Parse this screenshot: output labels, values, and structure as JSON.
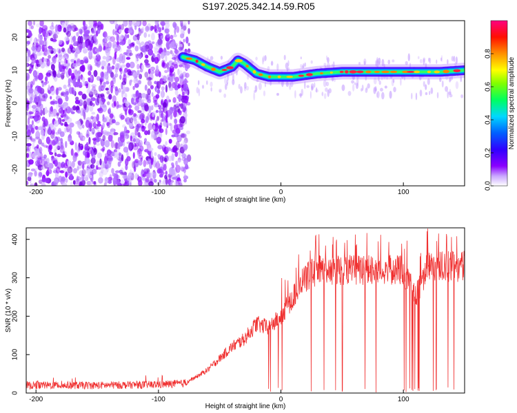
{
  "title": "S197.2025.342.14.59.R05",
  "chart_data": [
    {
      "type": "heatmap",
      "xlabel": "Height of straight line (km)",
      "ylabel": "Frequency (Hz)",
      "xlim": [
        -208,
        150
      ],
      "ylim": [
        -25,
        25
      ],
      "x_ticks": [
        "-200",
        "-100",
        "0",
        "100"
      ],
      "y_ticks": [
        "-20",
        "-10",
        "0",
        "10",
        "20"
      ],
      "colorbar": {
        "label": "Normalized spectral amplitude",
        "range": [
          0.0,
          1.0
        ],
        "ticks": [
          "0.0",
          "0.2",
          "0.4",
          "0.6",
          "0.8"
        ],
        "colors": [
          "#ffffff",
          "#8a00ff",
          "#0000ff",
          "#00d8ff",
          "#00ff40",
          "#ffff00",
          "#ff8000",
          "#ff0000",
          "#ff0080"
        ]
      },
      "noise_region": {
        "x_range": [
          -208,
          -75
        ],
        "level": "0.1-0.3"
      },
      "signal_ridge": {
        "x": [
          -80,
          -70,
          -60,
          -50,
          -40,
          -35,
          -30,
          -20,
          -10,
          0,
          10,
          20,
          30,
          50,
          70,
          90,
          110,
          130,
          150
        ],
        "y": [
          14,
          13,
          11,
          9.5,
          11,
          13,
          12,
          9,
          8,
          8,
          8,
          8.5,
          9,
          9.5,
          9.5,
          9.5,
          9.5,
          9.5,
          10
        ]
      }
    },
    {
      "type": "line",
      "xlabel": "Height of straight line (km)",
      "ylabel": "SNR (10 * v/v)",
      "xlim": [
        -208,
        150
      ],
      "ylim": [
        0,
        430
      ],
      "x_ticks": [
        "-200",
        "-100",
        "0",
        "100"
      ],
      "y_ticks": [
        "0",
        "100",
        "200",
        "300",
        "400"
      ],
      "series": [
        {
          "color": "#f03030",
          "envelope": {
            "x": [
              -208,
              -150,
              -100,
              -80,
              -70,
              -60,
              -50,
              -40,
              -30,
              -20,
              -10,
              0,
              10,
              20,
              30,
              40,
              60,
              80,
              100,
              110,
              120,
              140,
              150
            ],
            "y": [
              20,
              20,
              22,
              25,
              40,
              60,
              90,
              120,
              140,
              180,
              170,
              200,
              250,
              300,
              320,
              320,
              320,
              320,
              320,
              250,
              330,
              330,
              330
            ]
          }
        }
      ]
    }
  ]
}
